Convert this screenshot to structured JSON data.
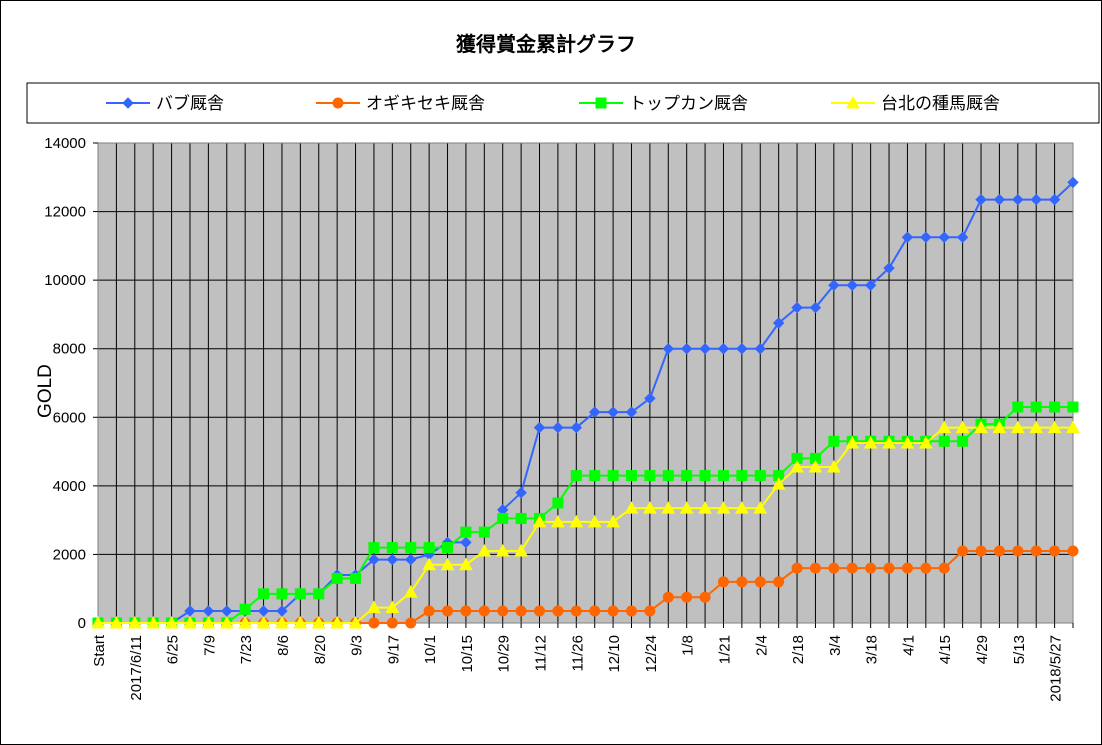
{
  "chart_data": {
    "type": "line",
    "title": "獲得賞金累計グラフ",
    "ylabel": "GOLD",
    "xlabel": "",
    "ylim": [
      0,
      14000
    ],
    "yticks": [
      0,
      2000,
      4000,
      6000,
      8000,
      10000,
      12000,
      14000
    ],
    "grid": true,
    "legend_position": "top",
    "plot_background": "#c0c0c0",
    "categories": [
      "Start",
      "",
      "2017/6/11",
      "",
      "6/25",
      "",
      "7/9",
      "",
      "7/23",
      "",
      "8/6",
      "",
      "8/20",
      "",
      "9/3",
      "",
      "9/17",
      "",
      "10/1",
      "",
      "10/15",
      "",
      "10/29",
      "",
      "11/12",
      "",
      "11/26",
      "",
      "12/10",
      "",
      "12/24",
      "",
      "1/8",
      "",
      "1/21",
      "",
      "2/4",
      "",
      "2/18",
      "",
      "3/4",
      "",
      "3/18",
      "",
      "4/1",
      "",
      "4/15",
      "",
      "4/29",
      "",
      "5/13",
      "",
      "2018/5/27",
      ""
    ],
    "series": [
      {
        "name": "バブ厩舎",
        "color": "#3366ff",
        "marker": "diamond",
        "values": [
          0,
          0,
          0,
          0,
          0,
          350,
          350,
          350,
          350,
          350,
          350,
          850,
          850,
          1400,
          1400,
          1850,
          1850,
          1850,
          2000,
          2350,
          2350,
          null,
          3300,
          3800,
          5700,
          5700,
          5700,
          6150,
          6150,
          6150,
          6550,
          8000,
          8000,
          8000,
          8000,
          8000,
          8000,
          8750,
          9200,
          9200,
          9850,
          9850,
          9850,
          10350,
          11250,
          11250,
          11250,
          11250,
          12350,
          12350,
          12350,
          12350,
          12350,
          12850
        ]
      },
      {
        "name": "オギキセキ厩舎",
        "color": "#ff6600",
        "marker": "circle",
        "values": [
          0,
          0,
          0,
          0,
          0,
          0,
          0,
          0,
          0,
          0,
          0,
          0,
          0,
          0,
          0,
          0,
          0,
          0,
          350,
          350,
          350,
          350,
          350,
          350,
          350,
          350,
          350,
          350,
          350,
          350,
          350,
          750,
          750,
          750,
          1200,
          1200,
          1200,
          1200,
          1600,
          1600,
          1600,
          1600,
          1600,
          1600,
          1600,
          1600,
          1600,
          2100,
          2100,
          2100,
          2100,
          2100,
          2100,
          2100
        ]
      },
      {
        "name": "トップカン厩舎",
        "color": "#00ff00",
        "marker": "square",
        "values": [
          0,
          0,
          0,
          0,
          0,
          0,
          0,
          0,
          400,
          850,
          850,
          850,
          850,
          1300,
          1300,
          2200,
          2200,
          2200,
          2200,
          2200,
          2650,
          2650,
          3050,
          3050,
          3050,
          3500,
          4300,
          4300,
          4300,
          4300,
          4300,
          4300,
          4300,
          4300,
          4300,
          4300,
          4300,
          4300,
          4800,
          4800,
          5300,
          5300,
          5300,
          5300,
          5300,
          5300,
          5300,
          5300,
          5800,
          5800,
          6300,
          6300,
          6300,
          6300
        ]
      },
      {
        "name": "台北の種馬厩舎",
        "color": "#ffff00",
        "marker": "triangle",
        "values": [
          0,
          0,
          0,
          0,
          0,
          0,
          0,
          0,
          0,
          0,
          0,
          0,
          0,
          0,
          0,
          450,
          450,
          900,
          1700,
          1700,
          1700,
          2100,
          2100,
          2100,
          2950,
          2950,
          2950,
          2950,
          2950,
          3350,
          3350,
          3350,
          3350,
          3350,
          3350,
          3350,
          3350,
          4050,
          4550,
          4550,
          4550,
          5250,
          5250,
          5250,
          5250,
          5250,
          5700,
          5700,
          5700,
          5700,
          5700,
          5700,
          5700,
          5700
        ]
      }
    ]
  }
}
